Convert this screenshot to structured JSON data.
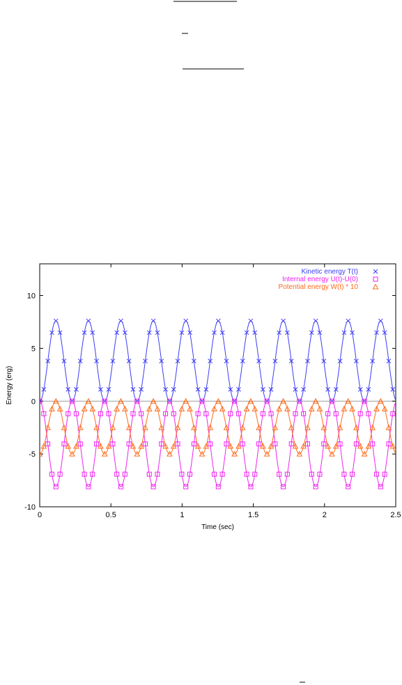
{
  "chart_data": {
    "type": "line",
    "title": "",
    "xlabel": "Time (sec)",
    "ylabel": "Energy (erg)",
    "xlim": [
      0,
      2.5
    ],
    "ylim": [
      -10,
      13
    ],
    "x_ticks": [
      "0",
      "0.5",
      "1",
      "1.5",
      "2",
      "2.5"
    ],
    "y_ticks": [
      "-10",
      "-5",
      "0",
      "5",
      "10"
    ],
    "x_tick_values": [
      0,
      0.5,
      1,
      1.5,
      2,
      2.5
    ],
    "y_tick_values": [
      -10,
      -5,
      0,
      5,
      10
    ],
    "grid": false,
    "zero_line": true,
    "legend_position": "top-right",
    "period": 0.228,
    "x_step": 0.0285,
    "series": [
      {
        "name": "Kinetic energy T(t)",
        "marker": "x",
        "color": "#3b3bf5",
        "formula": "amplitude * sin^2(pi t / period)",
        "amplitude": 7.6,
        "offset": 0
      },
      {
        "name": "Internal energy U(t)-U(0)",
        "marker": "square",
        "color": "#ee22ee",
        "formula": "-amplitude * sin^2(pi t / period)",
        "amplitude": 8.1,
        "offset": 0
      },
      {
        "name": "Potential energy W(t) * 10",
        "marker": "triangle",
        "color": "#ff6a1a",
        "formula": "-amplitude * cos^2(pi t / period)",
        "amplitude": 5.0,
        "offset": 0
      }
    ]
  }
}
